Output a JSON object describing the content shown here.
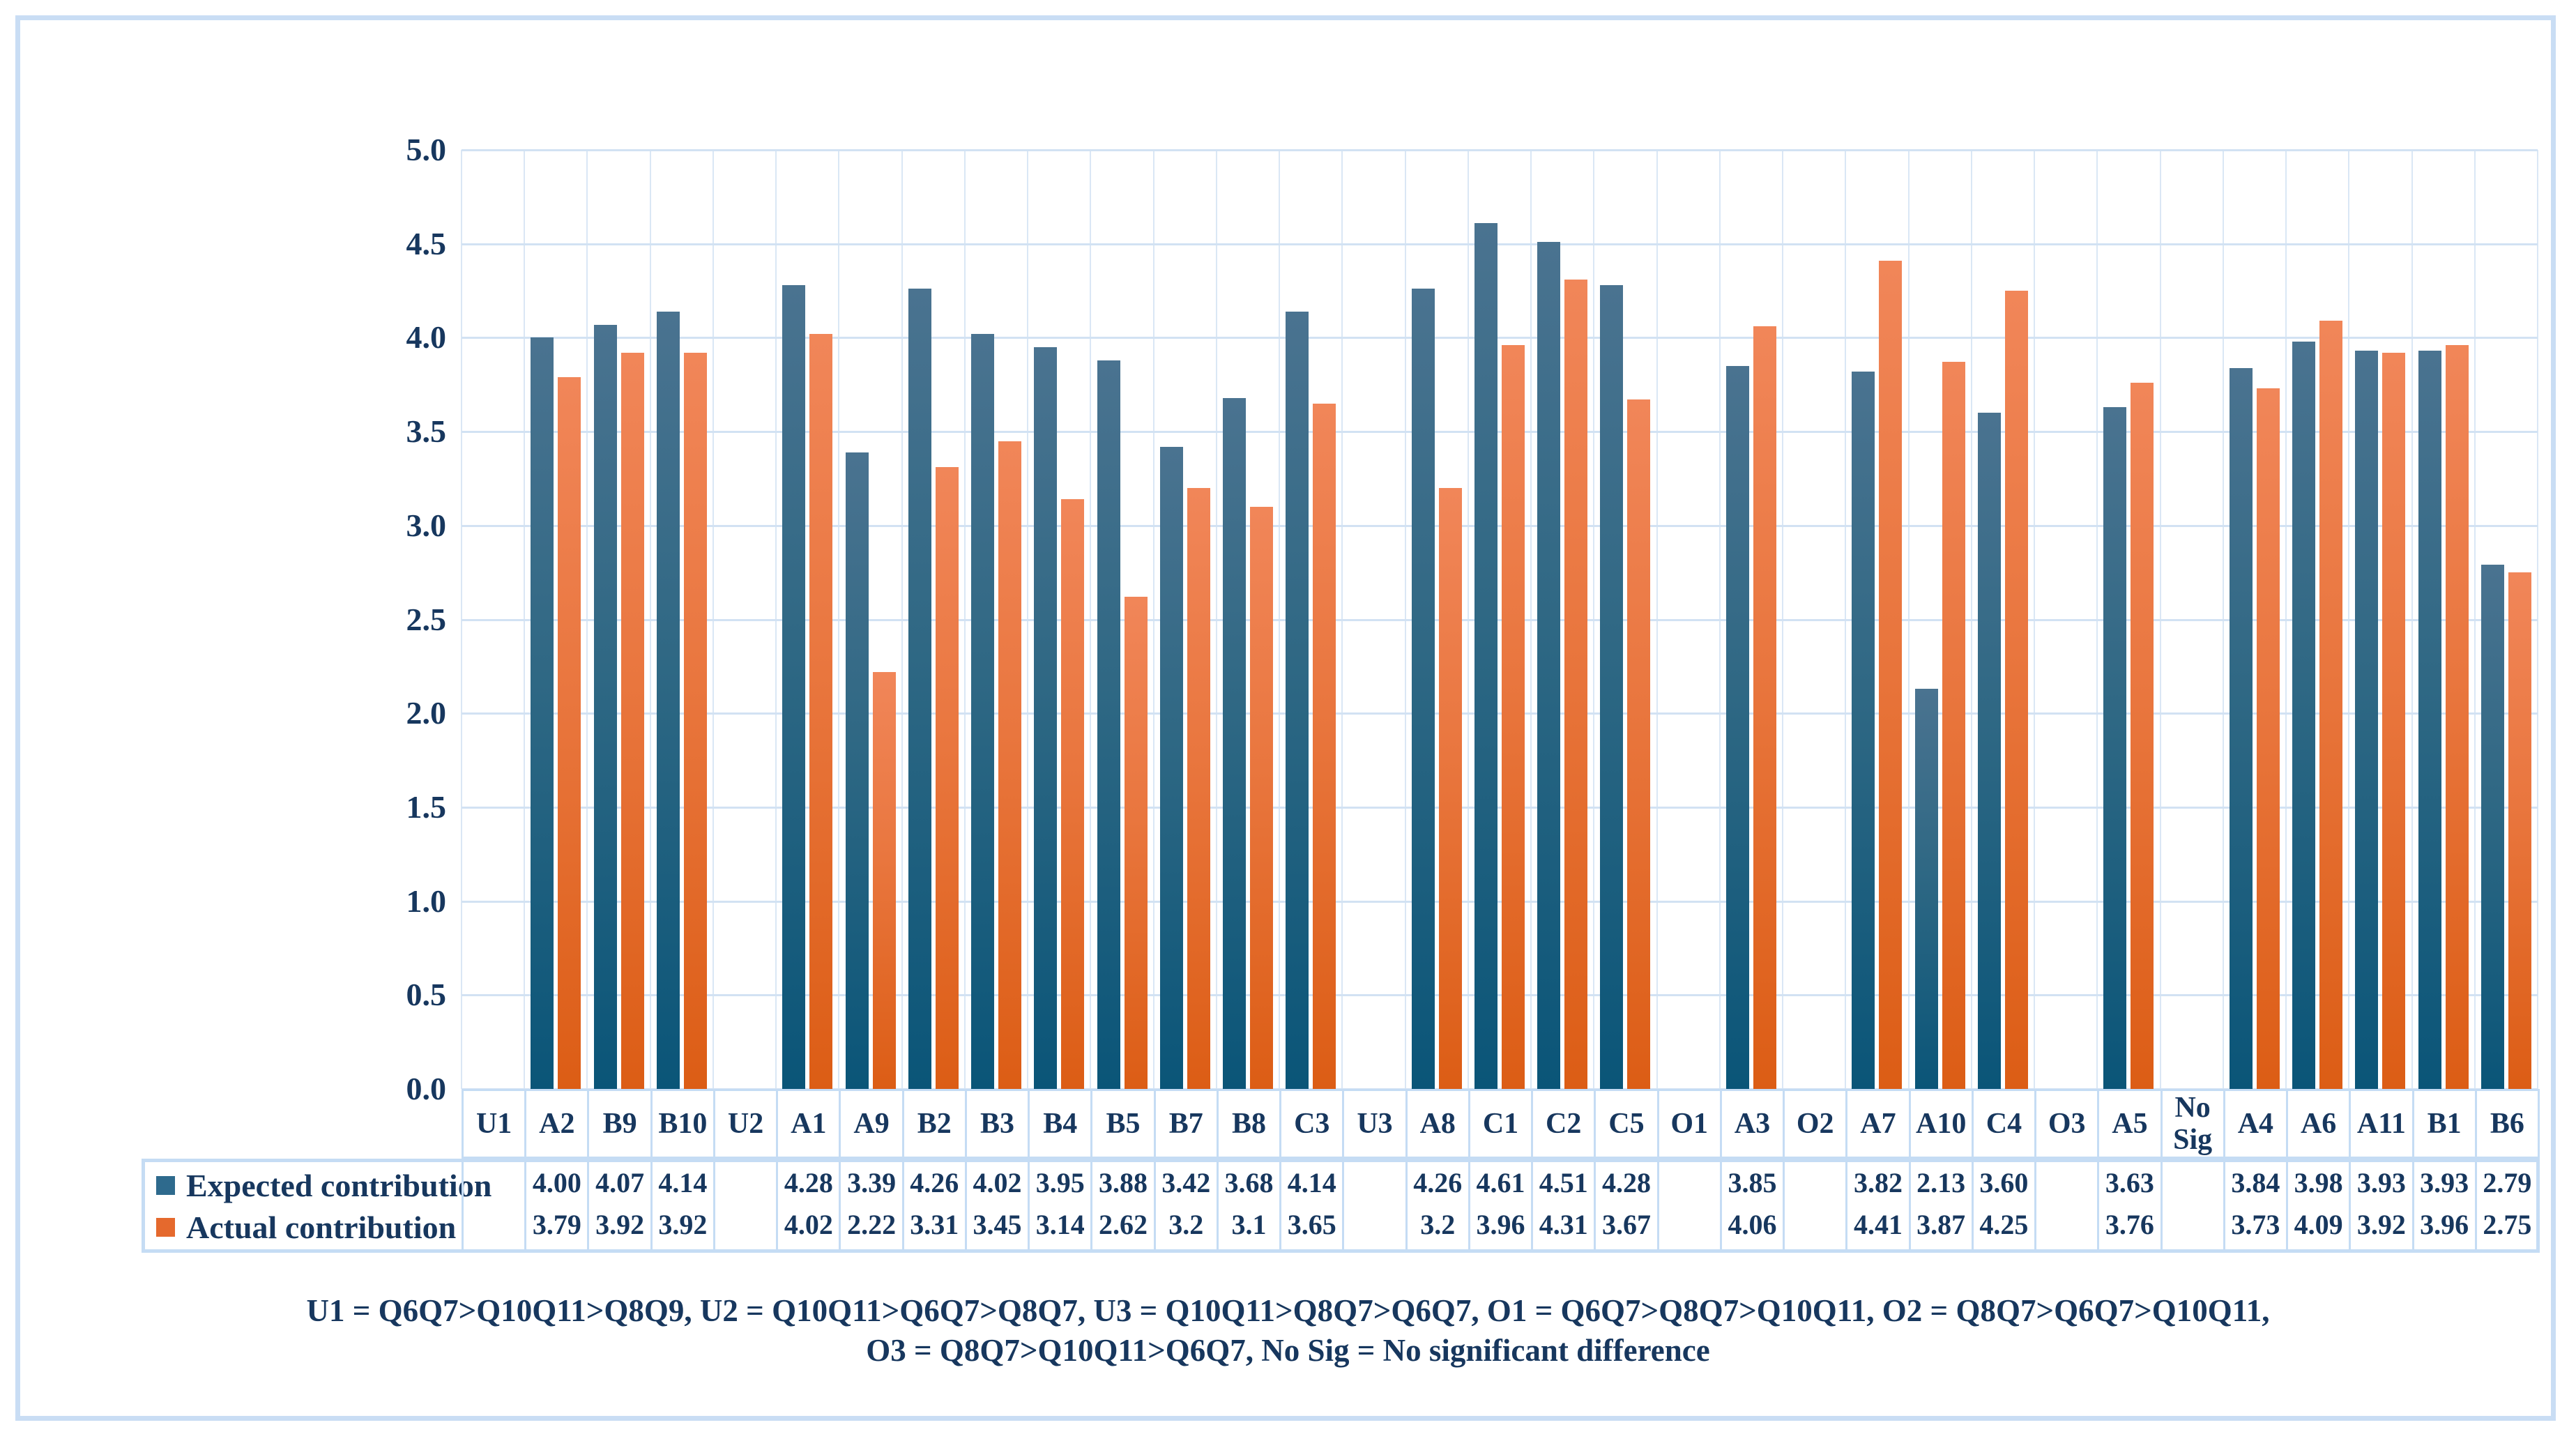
{
  "colors": {
    "expected_bar": "#2E6A8D",
    "actual_bar": "#E5692D",
    "text_navy": "#17375E",
    "grid_light_blue": "#D2E2F3",
    "border_light_blue": "#C5DCF4"
  },
  "chart_data": {
    "type": "bar",
    "title": "",
    "xlabel": "",
    "ylabel": "",
    "ylim": [
      0,
      5
    ],
    "ytick_labels": [
      "5.0",
      "4.5",
      "4.0",
      "3.5",
      "3.0",
      "2.5",
      "2.0",
      "1.5",
      "1.0",
      "0.5",
      "0.0"
    ],
    "grid": true,
    "legend_position": "left-of-data-table",
    "categories": [
      "U1",
      "A2",
      "B9",
      "B10",
      "U2",
      "A1",
      "A9",
      "B2",
      "B3",
      "B4",
      "B5",
      "B7",
      "B8",
      "C3",
      "U3",
      "A8",
      "C1",
      "C2",
      "C5",
      "O1",
      "A3",
      "O2",
      "A7",
      "A10",
      "C4",
      "O3",
      "A5",
      "No Sig",
      "A4",
      "A6",
      "A11",
      "B1",
      "B6"
    ],
    "series": [
      {
        "name": "Expected contribution",
        "color": "#2E6A8D",
        "values": [
          null,
          4.0,
          4.07,
          4.14,
          null,
          4.28,
          3.39,
          4.26,
          4.02,
          3.95,
          3.88,
          3.42,
          3.68,
          4.14,
          null,
          4.26,
          4.61,
          4.51,
          4.28,
          null,
          3.85,
          null,
          3.82,
          2.13,
          3.6,
          null,
          3.63,
          null,
          3.84,
          3.98,
          3.93,
          3.93,
          2.79
        ],
        "display": [
          "",
          "4.00",
          "4.07",
          "4.14",
          "",
          "4.28",
          "3.39",
          "4.26",
          "4.02",
          "3.95",
          "3.88",
          "3.42",
          "3.68",
          "4.14",
          "",
          "4.26",
          "4.61",
          "4.51",
          "4.28",
          "",
          "3.85",
          "",
          "3.82",
          "2.13",
          "3.60",
          "",
          "3.63",
          "",
          "3.84",
          "3.98",
          "3.93",
          "3.93",
          "2.79"
        ]
      },
      {
        "name": "Actual contribution",
        "color": "#E5692D",
        "values": [
          null,
          3.79,
          3.92,
          3.92,
          null,
          4.02,
          2.22,
          3.31,
          3.45,
          3.14,
          2.62,
          3.2,
          3.1,
          3.65,
          null,
          3.2,
          3.96,
          4.31,
          3.67,
          null,
          4.06,
          null,
          4.41,
          3.87,
          4.25,
          null,
          3.76,
          null,
          3.73,
          4.09,
          3.92,
          3.96,
          2.75
        ],
        "display": [
          "",
          "3.79",
          "3.92",
          "3.92",
          "",
          "4.02",
          "2.22",
          "3.31",
          "3.45",
          "3.14",
          "2.62",
          "3.2",
          "3.1",
          "3.65",
          "",
          "3.2",
          "3.96",
          "4.31",
          "3.67",
          "",
          "4.06",
          "",
          "4.41",
          "3.87",
          "4.25",
          "",
          "3.76",
          "",
          "3.73",
          "4.09",
          "3.92",
          "3.96",
          "2.75"
        ]
      }
    ]
  },
  "footnote": {
    "line1": "U1 = Q6Q7>Q10Q11>Q8Q9, U2 = Q10Q11>Q6Q7>Q8Q7, U3 = Q10Q11>Q8Q7>Q6Q7, O1 = Q6Q7>Q8Q7>Q10Q11, O2 = Q8Q7>Q6Q7>Q10Q11,",
    "line2": "O3 = Q8Q7>Q10Q11>Q6Q7, No Sig = No significant difference"
  }
}
